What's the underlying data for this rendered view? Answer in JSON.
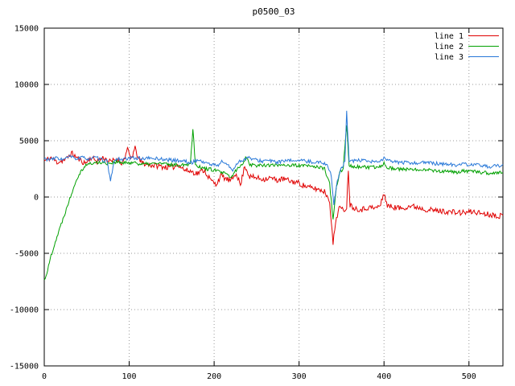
{
  "title": "p0500_03",
  "colors": {
    "background": "#ffffff",
    "axis": "#000000",
    "grid": "#999999",
    "line1": "#e00000",
    "line2": "#00a000",
    "line3": "#2878d8"
  },
  "legend": {
    "position": "top-right",
    "entries": [
      "line 1",
      "line 2",
      "line 3"
    ]
  },
  "chart_data": {
    "type": "line",
    "title": "p0500_03",
    "xlabel": "",
    "ylabel": "",
    "xlim": [
      0,
      540
    ],
    "ylim": [
      -15000,
      15000
    ],
    "x_ticks": [
      0,
      100,
      200,
      300,
      400,
      500
    ],
    "y_ticks": [
      -15000,
      -10000,
      -5000,
      0,
      5000,
      10000,
      15000
    ],
    "grid": "dotted",
    "legend_position": "top-right",
    "series": [
      {
        "name": "line 1",
        "color": "#e00000",
        "noise": 250,
        "seed": 11,
        "anchors": [
          [
            0,
            3200
          ],
          [
            8,
            3500
          ],
          [
            15,
            3100
          ],
          [
            25,
            3300
          ],
          [
            32,
            3900
          ],
          [
            40,
            3400
          ],
          [
            48,
            3000
          ],
          [
            55,
            3500
          ],
          [
            62,
            3200
          ],
          [
            70,
            3500
          ],
          [
            78,
            3100
          ],
          [
            85,
            3400
          ],
          [
            92,
            3000
          ],
          [
            98,
            4200
          ],
          [
            102,
            3400
          ],
          [
            107,
            4300
          ],
          [
            112,
            3200
          ],
          [
            120,
            2900
          ],
          [
            130,
            2800
          ],
          [
            140,
            2700
          ],
          [
            150,
            2600
          ],
          [
            158,
            2900
          ],
          [
            165,
            2400
          ],
          [
            172,
            2300
          ],
          [
            180,
            2100
          ],
          [
            188,
            2400
          ],
          [
            196,
            1500
          ],
          [
            202,
            1100
          ],
          [
            208,
            1900
          ],
          [
            214,
            1600
          ],
          [
            220,
            1400
          ],
          [
            226,
            2200
          ],
          [
            231,
            1000
          ],
          [
            236,
            2800
          ],
          [
            242,
            1800
          ],
          [
            250,
            1700
          ],
          [
            258,
            1600
          ],
          [
            266,
            1700
          ],
          [
            274,
            1500
          ],
          [
            282,
            1600
          ],
          [
            290,
            1400
          ],
          [
            298,
            1300
          ],
          [
            306,
            1000
          ],
          [
            314,
            800
          ],
          [
            322,
            700
          ],
          [
            330,
            500
          ],
          [
            336,
            -300
          ],
          [
            340,
            -4200
          ],
          [
            343,
            -2200
          ],
          [
            347,
            -900
          ],
          [
            352,
            -1200
          ],
          [
            356,
            -900
          ],
          [
            358,
            2500
          ],
          [
            360,
            -700
          ],
          [
            366,
            -1000
          ],
          [
            374,
            -1100
          ],
          [
            382,
            -900
          ],
          [
            390,
            -1000
          ],
          [
            396,
            -700
          ],
          [
            400,
            400
          ],
          [
            404,
            -800
          ],
          [
            412,
            -900
          ],
          [
            420,
            -1000
          ],
          [
            430,
            -800
          ],
          [
            440,
            -900
          ],
          [
            450,
            -1100
          ],
          [
            460,
            -1200
          ],
          [
            475,
            -1300
          ],
          [
            490,
            -1400
          ],
          [
            505,
            -1300
          ],
          [
            520,
            -1500
          ],
          [
            540,
            -1700
          ]
        ]
      },
      {
        "name": "line 2",
        "color": "#00a000",
        "noise": 160,
        "seed": 22,
        "anchors": [
          [
            0,
            -7400
          ],
          [
            4,
            -6500
          ],
          [
            8,
            -5200
          ],
          [
            12,
            -4200
          ],
          [
            16,
            -3300
          ],
          [
            20,
            -2400
          ],
          [
            24,
            -1500
          ],
          [
            28,
            -600
          ],
          [
            32,
            300
          ],
          [
            36,
            1200
          ],
          [
            40,
            1900
          ],
          [
            45,
            2500
          ],
          [
            50,
            2900
          ],
          [
            58,
            3000
          ],
          [
            66,
            3100
          ],
          [
            75,
            3000
          ],
          [
            85,
            3100
          ],
          [
            95,
            3000
          ],
          [
            105,
            3100
          ],
          [
            115,
            2900
          ],
          [
            125,
            2950
          ],
          [
            135,
            3000
          ],
          [
            145,
            2900
          ],
          [
            155,
            2850
          ],
          [
            165,
            2900
          ],
          [
            172,
            2950
          ],
          [
            175,
            6100
          ],
          [
            178,
            2900
          ],
          [
            185,
            2600
          ],
          [
            192,
            2500
          ],
          [
            200,
            2400
          ],
          [
            208,
            2200
          ],
          [
            215,
            2000
          ],
          [
            220,
            1700
          ],
          [
            226,
            2400
          ],
          [
            232,
            2800
          ],
          [
            238,
            3600
          ],
          [
            242,
            2900
          ],
          [
            250,
            2800
          ],
          [
            260,
            2850
          ],
          [
            270,
            2800
          ],
          [
            280,
            2900
          ],
          [
            290,
            2800
          ],
          [
            300,
            2800
          ],
          [
            310,
            2750
          ],
          [
            320,
            2700
          ],
          [
            330,
            2500
          ],
          [
            336,
            1200
          ],
          [
            340,
            -2100
          ],
          [
            344,
            900
          ],
          [
            348,
            2200
          ],
          [
            352,
            2600
          ],
          [
            356,
            6400
          ],
          [
            359,
            2800
          ],
          [
            365,
            2700
          ],
          [
            375,
            2650
          ],
          [
            385,
            2600
          ],
          [
            395,
            2700
          ],
          [
            400,
            3000
          ],
          [
            405,
            2600
          ],
          [
            415,
            2500
          ],
          [
            425,
            2450
          ],
          [
            435,
            2400
          ],
          [
            445,
            2500
          ],
          [
            455,
            2400
          ],
          [
            465,
            2300
          ],
          [
            475,
            2250
          ],
          [
            485,
            2200
          ],
          [
            495,
            2300
          ],
          [
            505,
            2250
          ],
          [
            515,
            2200
          ],
          [
            525,
            2100
          ],
          [
            540,
            2200
          ]
        ]
      },
      {
        "name": "line 3",
        "color": "#2878d8",
        "noise": 160,
        "seed": 33,
        "anchors": [
          [
            0,
            3400
          ],
          [
            8,
            3300
          ],
          [
            15,
            3500
          ],
          [
            22,
            3300
          ],
          [
            30,
            3600
          ],
          [
            38,
            3400
          ],
          [
            45,
            3500
          ],
          [
            52,
            3400
          ],
          [
            60,
            3500
          ],
          [
            68,
            3300
          ],
          [
            74,
            3200
          ],
          [
            78,
            1300
          ],
          [
            82,
            3200
          ],
          [
            88,
            3400
          ],
          [
            96,
            3350
          ],
          [
            105,
            3500
          ],
          [
            115,
            3400
          ],
          [
            125,
            3450
          ],
          [
            135,
            3400
          ],
          [
            145,
            3300
          ],
          [
            155,
            3250
          ],
          [
            165,
            3200
          ],
          [
            172,
            3000
          ],
          [
            180,
            3300
          ],
          [
            188,
            3100
          ],
          [
            196,
            2900
          ],
          [
            204,
            2800
          ],
          [
            210,
            3200
          ],
          [
            216,
            2800
          ],
          [
            222,
            2400
          ],
          [
            228,
            3100
          ],
          [
            234,
            3300
          ],
          [
            240,
            3500
          ],
          [
            248,
            3300
          ],
          [
            256,
            3200
          ],
          [
            264,
            3250
          ],
          [
            272,
            3100
          ],
          [
            280,
            3150
          ],
          [
            288,
            3200
          ],
          [
            296,
            3300
          ],
          [
            304,
            3200
          ],
          [
            312,
            3150
          ],
          [
            320,
            3100
          ],
          [
            328,
            3050
          ],
          [
            334,
            2800
          ],
          [
            338,
            1800
          ],
          [
            341,
            -700
          ],
          [
            345,
            1500
          ],
          [
            349,
            2400
          ],
          [
            352,
            2800
          ],
          [
            354,
            3200
          ],
          [
            356,
            7600
          ],
          [
            359,
            3300
          ],
          [
            364,
            3200
          ],
          [
            372,
            3250
          ],
          [
            380,
            3150
          ],
          [
            388,
            3100
          ],
          [
            396,
            3200
          ],
          [
            400,
            3450
          ],
          [
            405,
            3200
          ],
          [
            415,
            3100
          ],
          [
            425,
            3050
          ],
          [
            435,
            3000
          ],
          [
            445,
            3100
          ],
          [
            455,
            3000
          ],
          [
            465,
            2950
          ],
          [
            475,
            2900
          ],
          [
            485,
            2850
          ],
          [
            495,
            2900
          ],
          [
            505,
            2850
          ],
          [
            515,
            2800
          ],
          [
            525,
            2700
          ],
          [
            540,
            2800
          ]
        ]
      }
    ]
  }
}
